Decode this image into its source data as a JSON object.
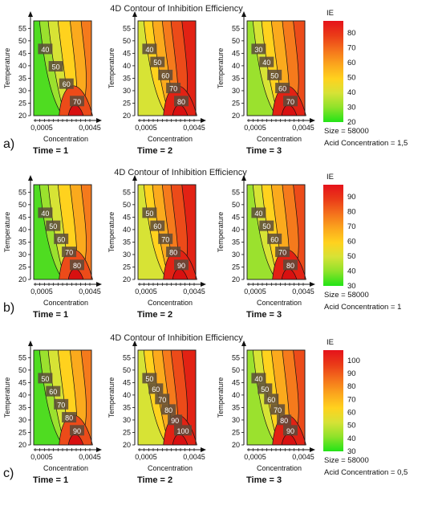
{
  "chart_data": [
    {
      "panel_label": "a)",
      "title": "4D Contour of Inhibition Efficiency",
      "type": "heatmap",
      "xlabel": "Concentration",
      "ylabel": "Temperature",
      "x_ticks": [
        "0,0005",
        "0,0045"
      ],
      "y_ticks": [
        "20",
        "25",
        "30",
        "35",
        "40",
        "45",
        "50",
        "55"
      ],
      "ylim": [
        20,
        58
      ],
      "colorbar": {
        "label": "IE",
        "ticks": [
          "20",
          "30",
          "40",
          "50",
          "60",
          "70",
          "80"
        ],
        "range": [
          20,
          88
        ]
      },
      "notes": [
        "Size = 58000",
        "Acid Concentration = 1,5"
      ],
      "subplots": [
        {
          "time_label": "Time = 1",
          "contour_labels": [
            "40",
            "50",
            "60",
            "70"
          ]
        },
        {
          "time_label": "Time = 2",
          "contour_labels": [
            "40",
            "50",
            "60",
            "70",
            "80"
          ]
        },
        {
          "time_label": "Time = 3",
          "contour_labels": [
            "30",
            "40",
            "50",
            "60",
            "70"
          ]
        }
      ]
    },
    {
      "panel_label": "b)",
      "title": "4D Contour of Inhibition Efficiency",
      "type": "heatmap",
      "xlabel": "Concentration",
      "ylabel": "Temperature",
      "x_ticks": [
        "0,0005",
        "0,0045"
      ],
      "y_ticks": [
        "20",
        "25",
        "30",
        "35",
        "40",
        "45",
        "50",
        "55"
      ],
      "ylim": [
        20,
        58
      ],
      "colorbar": {
        "label": "IE",
        "ticks": [
          "30",
          "40",
          "50",
          "60",
          "70",
          "80",
          "90"
        ],
        "range": [
          30,
          98
        ]
      },
      "notes": [
        "Size = 58000",
        "Acid Concentration = 1"
      ],
      "subplots": [
        {
          "time_label": "Time = 1",
          "contour_labels": [
            "40",
            "50",
            "60",
            "70",
            "80"
          ]
        },
        {
          "time_label": "Time = 2",
          "contour_labels": [
            "50",
            "60",
            "70",
            "80",
            "90"
          ]
        },
        {
          "time_label": "Time = 3",
          "contour_labels": [
            "40",
            "50",
            "60",
            "70",
            "80"
          ]
        }
      ]
    },
    {
      "panel_label": "c)",
      "title": "4D Contour of Inhibition Efficiency",
      "type": "heatmap",
      "xlabel": "Concentration",
      "ylabel": "Temperature",
      "x_ticks": [
        "0,0005",
        "0,0045"
      ],
      "y_ticks": [
        "20",
        "25",
        "30",
        "35",
        "40",
        "45",
        "50",
        "55"
      ],
      "ylim": [
        20,
        58
      ],
      "colorbar": {
        "label": "IE",
        "ticks": [
          "30",
          "40",
          "50",
          "60",
          "70",
          "80",
          "90",
          "100"
        ],
        "range": [
          30,
          108
        ]
      },
      "notes": [
        "Size = 58000",
        "Acid Concentration = 0,5"
      ],
      "subplots": [
        {
          "time_label": "Time = 1",
          "contour_labels": [
            "50",
            "60",
            "70",
            "80",
            "90"
          ]
        },
        {
          "time_label": "Time = 2",
          "contour_labels": [
            "50",
            "60",
            "70",
            "80",
            "90",
            "100"
          ]
        },
        {
          "time_label": "Time = 3",
          "contour_labels": [
            "40",
            "50",
            "60",
            "70",
            "80",
            "90"
          ]
        }
      ]
    }
  ]
}
